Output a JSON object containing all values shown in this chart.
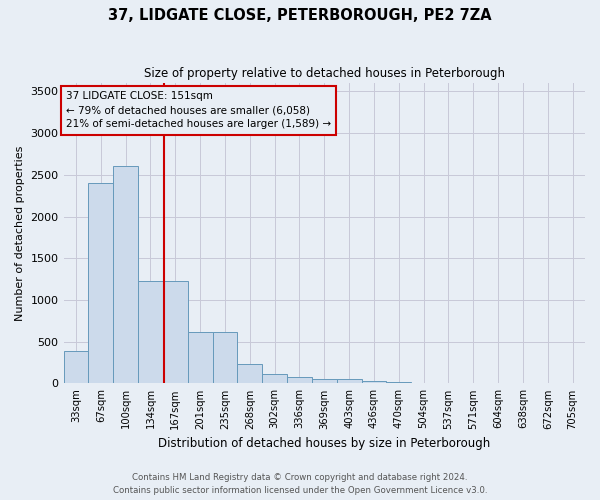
{
  "title": "37, LIDGATE CLOSE, PETERBOROUGH, PE2 7ZA",
  "subtitle": "Size of property relative to detached houses in Peterborough",
  "xlabel": "Distribution of detached houses by size in Peterborough",
  "ylabel": "Number of detached properties",
  "footer1": "Contains HM Land Registry data © Crown copyright and database right 2024.",
  "footer2": "Contains public sector information licensed under the Open Government Licence v3.0.",
  "bar_labels": [
    "33sqm",
    "67sqm",
    "100sqm",
    "134sqm",
    "167sqm",
    "201sqm",
    "235sqm",
    "268sqm",
    "302sqm",
    "336sqm",
    "369sqm",
    "403sqm",
    "436sqm",
    "470sqm",
    "504sqm",
    "537sqm",
    "571sqm",
    "604sqm",
    "638sqm",
    "672sqm",
    "705sqm"
  ],
  "bar_values": [
    390,
    2400,
    2600,
    1230,
    1230,
    620,
    620,
    230,
    110,
    75,
    55,
    50,
    30,
    20,
    10,
    8,
    5,
    3,
    2,
    1,
    1
  ],
  "bar_color": "#ccdaeb",
  "bar_edge_color": "#6699bb",
  "ylim": [
    0,
    3600
  ],
  "yticks": [
    0,
    500,
    1000,
    1500,
    2000,
    2500,
    3000,
    3500
  ],
  "vline_x": 3.55,
  "vline_color": "#cc0000",
  "annotation_title": "37 LIDGATE CLOSE: 151sqm",
  "annotation_line1": "← 79% of detached houses are smaller (6,058)",
  "annotation_line2": "21% of semi-detached houses are larger (1,589) →",
  "annotation_box_color": "#cc0000",
  "bg_color": "#e8eef5",
  "grid_color": "#c8c8d8"
}
